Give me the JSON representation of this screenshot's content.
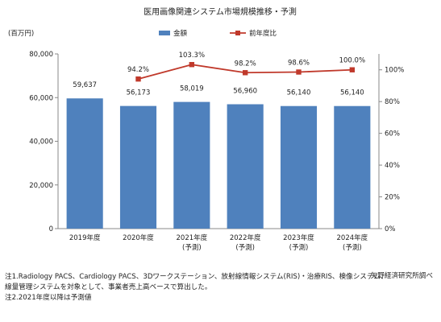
{
  "chart_data": {
    "type": "bar",
    "title": "医用画像関連システム市場規模推移・予測",
    "y_unit_label": "(百万円)",
    "categories": [
      {
        "year": "2019年度",
        "note": ""
      },
      {
        "year": "2020年度",
        "note": ""
      },
      {
        "year": "2021年度",
        "note": "(予測)"
      },
      {
        "year": "2022年度",
        "note": "(予測)"
      },
      {
        "year": "2023年度",
        "note": "(予測)"
      },
      {
        "year": "2024年度",
        "note": "(予測)"
      }
    ],
    "series": [
      {
        "name": "金額",
        "kind": "bar",
        "axis": "left",
        "color": "#4f81bd",
        "values": [
          59637,
          56173,
          58019,
          56960,
          56140,
          56140
        ],
        "labels": [
          "59,637",
          "56,173",
          "58,019",
          "56,960",
          "56,140",
          "56,140"
        ]
      },
      {
        "name": "前年度比",
        "kind": "line",
        "axis": "right",
        "color": "#c0392b",
        "values": [
          null,
          94.2,
          103.3,
          98.2,
          98.6,
          100.0
        ],
        "labels": [
          "",
          "94.2%",
          "103.3%",
          "98.2%",
          "98.6%",
          "100.0%"
        ]
      }
    ],
    "y_left": {
      "range": [
        0,
        80000
      ],
      "ticks": [
        0,
        20000,
        40000,
        60000,
        80000
      ],
      "tick_labels": [
        "0",
        "20,000",
        "40,000",
        "60,000",
        "80,000"
      ]
    },
    "y_right": {
      "range": [
        0,
        110
      ],
      "ticks": [
        0,
        20,
        40,
        60,
        80,
        100
      ],
      "tick_labels": [
        "0%",
        "20%",
        "40%",
        "60%",
        "80%",
        "100%"
      ]
    },
    "legend_position": "top"
  },
  "footer": {
    "source": "矢野経済研究所調べ",
    "note1_line1": "注1.Radiology PACS、Cardiology PACS、3Dワークステーション、放射線情報システム(RIS)・治療RIS、検像システム、",
    "note1_line2": "線量管理システムを対象として、事業者売上高ベースで算出した。",
    "note2": "注2.2021年度以降は予測値"
  }
}
